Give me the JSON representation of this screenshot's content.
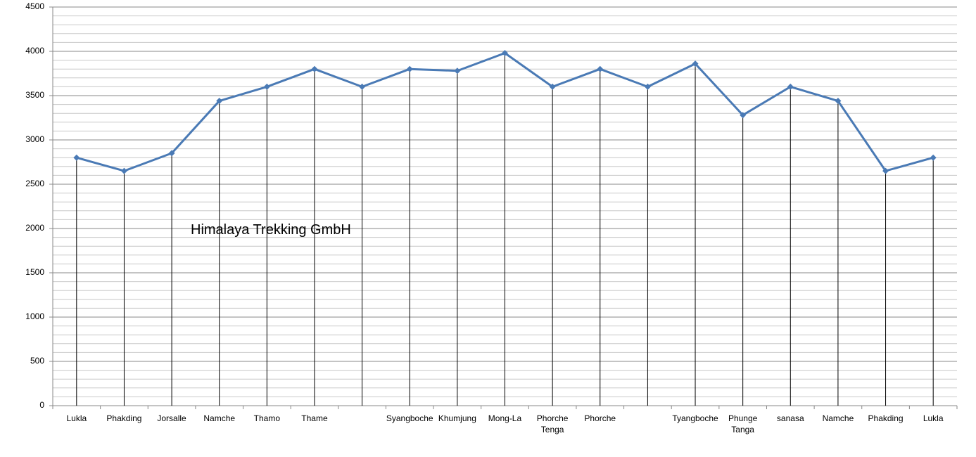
{
  "chart_data": {
    "type": "line",
    "annotation": "Himalaya Trekking GmbH",
    "categories": [
      "Lukla",
      "Phakding",
      "Jorsalle",
      "Namche",
      "Thamo",
      "Thame",
      null,
      "Syangboche",
      "Khumjung",
      "Mong-La",
      "Phorche Tenga",
      "Phorche",
      null,
      "Tyangboche",
      "Phunge Tanga",
      "sanasa",
      "Namche",
      "Phakding",
      "Lukla"
    ],
    "values": [
      2800,
      2650,
      2850,
      3440,
      3600,
      3800,
      3600,
      3800,
      3780,
      3980,
      3600,
      3800,
      3600,
      3860,
      3280,
      3600,
      3440,
      2650,
      2800
    ],
    "color": "#4a7ab5",
    "ylim": [
      0,
      4500
    ],
    "yticks": [
      0,
      500,
      1000,
      1500,
      2000,
      2500,
      3000,
      3500,
      4000,
      4500
    ],
    "grid": true,
    "drop_lines": true
  }
}
